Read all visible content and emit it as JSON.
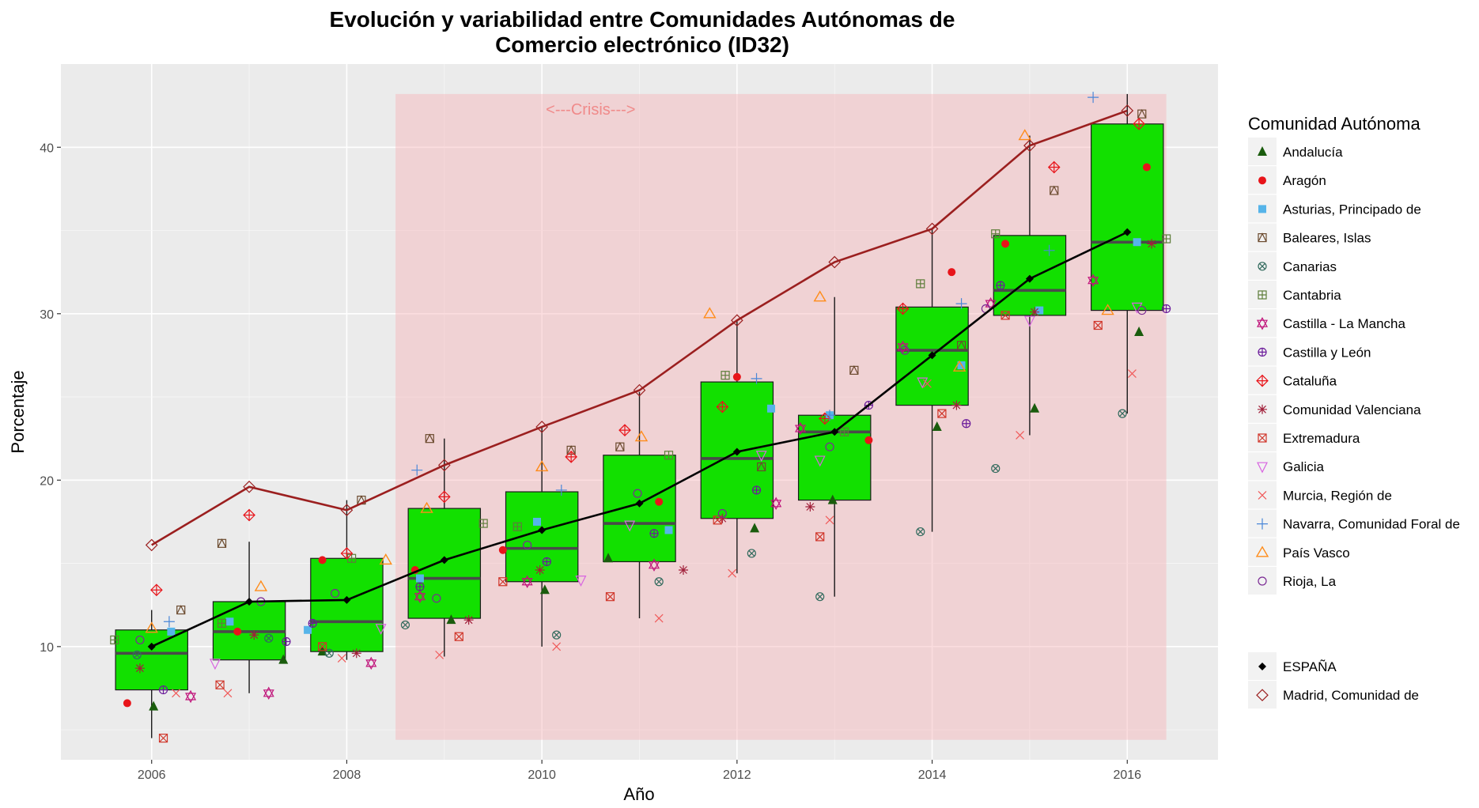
{
  "chart_data": {
    "type": "box",
    "title_line1": "Evolución y variabilidad entre Comunidades Autónomas de",
    "title_line2": "Comercio electrónico (ID32)",
    "xlabel": "Año",
    "ylabel": "Porcentaje",
    "xlim": [
      2005.07,
      2016.93
    ],
    "ylim": [
      3.2,
      45.0
    ],
    "x_ticks": [
      2006,
      2008,
      2010,
      2012,
      2014,
      2016
    ],
    "y_ticks": [
      10,
      20,
      30,
      40
    ],
    "grid": true,
    "legend_position": "right",
    "legend_title": "Comunidad Autónoma",
    "annotation": {
      "label": "<---Crisis--->",
      "x_range": [
        2008.5,
        2016.4
      ],
      "y_range": [
        4.4,
        43.2
      ],
      "label_y": 42.3,
      "color": "#f08a8a"
    },
    "boxplots": [
      {
        "year": 2006,
        "lower": 4.5,
        "q1": 7.4,
        "median": 9.6,
        "q3": 11.0,
        "upper": 12.2
      },
      {
        "year": 2007,
        "lower": 7.2,
        "q1": 9.2,
        "median": 10.9,
        "q3": 12.7,
        "upper": 16.3
      },
      {
        "year": 2008,
        "lower": 9.2,
        "q1": 9.7,
        "median": 11.5,
        "q3": 15.3,
        "upper": 18.8
      },
      {
        "year": 2009,
        "lower": 9.4,
        "q1": 11.7,
        "median": 14.1,
        "q3": 18.3,
        "upper": 22.5
      },
      {
        "year": 2010,
        "lower": 10.0,
        "q1": 13.9,
        "median": 15.9,
        "q3": 19.3,
        "upper": 23.2
      },
      {
        "year": 2011,
        "lower": 11.7,
        "q1": 15.1,
        "median": 17.4,
        "q3": 21.5,
        "upper": 25.3
      },
      {
        "year": 2012,
        "lower": 14.4,
        "q1": 17.7,
        "median": 21.3,
        "q3": 25.9,
        "upper": 29.6
      },
      {
        "year": 2013,
        "lower": 13.0,
        "q1": 18.8,
        "median": 22.9,
        "q3": 23.9,
        "upper": 31.0
      },
      {
        "year": 2014,
        "lower": 16.9,
        "q1": 24.5,
        "median": 27.8,
        "q3": 30.4,
        "upper": 35.1
      },
      {
        "year": 2015,
        "lower": 22.7,
        "q1": 29.9,
        "median": 31.4,
        "q3": 34.7,
        "upper": 40.7
      },
      {
        "year": 2016,
        "lower": 24.0,
        "q1": 30.2,
        "median": 34.3,
        "q3": 41.4,
        "upper": 43.2
      }
    ],
    "box_fill": "#12e000",
    "series": [
      {
        "name": "Andalucía",
        "shape": "triangle",
        "color": "#1a5c0d",
        "points": [
          [
            2006.02,
            6.4
          ],
          [
            2007.35,
            9.2
          ],
          [
            2007.75,
            9.7
          ],
          [
            2009.07,
            11.6
          ],
          [
            2010.03,
            13.4
          ],
          [
            2010.68,
            15.3
          ],
          [
            2012.18,
            17.1
          ],
          [
            2012.98,
            18.8
          ],
          [
            2014.05,
            23.2
          ],
          [
            2015.05,
            24.3
          ],
          [
            2016.12,
            28.9
          ]
        ]
      },
      {
        "name": "Aragón",
        "shape": "dot",
        "color": "#e8141a",
        "points": [
          [
            2005.75,
            6.6
          ],
          [
            2006.88,
            10.9
          ],
          [
            2007.75,
            15.2
          ],
          [
            2008.7,
            14.6
          ],
          [
            2009.6,
            15.8
          ],
          [
            2011.2,
            18.7
          ],
          [
            2012.0,
            26.2
          ],
          [
            2013.35,
            22.4
          ],
          [
            2014.2,
            32.5
          ],
          [
            2014.75,
            34.2
          ],
          [
            2016.2,
            38.8
          ]
        ]
      },
      {
        "name": "Asturias, Principado de",
        "shape": "square",
        "color": "#56b4e9",
        "points": [
          [
            2006.2,
            10.9
          ],
          [
            2006.8,
            11.5
          ],
          [
            2007.6,
            11.0
          ],
          [
            2008.75,
            14.1
          ],
          [
            2009.95,
            17.5
          ],
          [
            2011.3,
            17.0
          ],
          [
            2012.35,
            24.3
          ],
          [
            2012.95,
            23.9
          ],
          [
            2014.3,
            26.9
          ],
          [
            2015.1,
            30.2
          ],
          [
            2016.1,
            34.3
          ]
        ]
      },
      {
        "name": "Baleares, Islas",
        "shape": "squarex",
        "color": "#6b4a2e",
        "points": [
          [
            2006.3,
            12.2
          ],
          [
            2006.72,
            16.2
          ],
          [
            2008.15,
            18.8
          ],
          [
            2008.85,
            22.5
          ],
          [
            2010.3,
            21.8
          ],
          [
            2010.8,
            22.0
          ],
          [
            2012.25,
            20.8
          ],
          [
            2013.2,
            26.6
          ],
          [
            2014.3,
            28.1
          ],
          [
            2015.25,
            37.4
          ],
          [
            2016.15,
            42.0
          ]
        ]
      },
      {
        "name": "Canarias",
        "shape": "circlex",
        "color": "#336b5e",
        "points": [
          [
            2005.85,
            9.5
          ],
          [
            2007.2,
            10.5
          ],
          [
            2007.82,
            9.6
          ],
          [
            2008.6,
            11.3
          ],
          [
            2010.15,
            10.7
          ],
          [
            2011.2,
            13.9
          ],
          [
            2012.15,
            15.6
          ],
          [
            2012.85,
            13.0
          ],
          [
            2013.88,
            16.9
          ],
          [
            2014.65,
            20.7
          ],
          [
            2015.95,
            24.0
          ]
        ]
      },
      {
        "name": "Cantabria",
        "shape": "squareplus",
        "color": "#5e7d3a",
        "points": [
          [
            2005.62,
            10.4
          ],
          [
            2006.72,
            11.4
          ],
          [
            2008.05,
            15.3
          ],
          [
            2009.4,
            17.4
          ],
          [
            2009.75,
            17.2
          ],
          [
            2011.3,
            21.5
          ],
          [
            2011.88,
            26.3
          ],
          [
            2013.1,
            22.9
          ],
          [
            2013.88,
            31.8
          ],
          [
            2014.65,
            34.8
          ],
          [
            2016.4,
            34.5
          ]
        ]
      },
      {
        "name": "Castilla - La Mancha",
        "shape": "star6",
        "color": "#c0137a",
        "points": [
          [
            2006.4,
            7.0
          ],
          [
            2007.2,
            7.2
          ],
          [
            2008.25,
            9.0
          ],
          [
            2008.75,
            13.0
          ],
          [
            2009.85,
            13.9
          ],
          [
            2011.15,
            14.9
          ],
          [
            2012.4,
            18.6
          ],
          [
            2012.65,
            23.1
          ],
          [
            2013.7,
            28.0
          ],
          [
            2014.6,
            30.6
          ],
          [
            2015.65,
            32.0
          ]
        ]
      },
      {
        "name": "Castilla y León",
        "shape": "circleplus",
        "color": "#6a1a9a",
        "points": [
          [
            2006.12,
            7.4
          ],
          [
            2007.38,
            10.3
          ],
          [
            2007.65,
            11.4
          ],
          [
            2008.75,
            13.6
          ],
          [
            2010.05,
            15.1
          ],
          [
            2011.15,
            16.8
          ],
          [
            2012.2,
            19.4
          ],
          [
            2013.35,
            24.5
          ],
          [
            2014.35,
            23.4
          ],
          [
            2014.7,
            31.7
          ],
          [
            2016.4,
            30.3
          ]
        ]
      },
      {
        "name": "Cataluña",
        "shape": "diamondplus",
        "color": "#e8141a",
        "points": [
          [
            2006.05,
            13.4
          ],
          [
            2007.0,
            17.9
          ],
          [
            2008.0,
            15.6
          ],
          [
            2009.0,
            19.0
          ],
          [
            2010.3,
            21.4
          ],
          [
            2010.85,
            23.0
          ],
          [
            2011.85,
            24.4
          ],
          [
            2012.9,
            23.7
          ],
          [
            2013.7,
            30.3
          ],
          [
            2015.25,
            38.8
          ],
          [
            2016.12,
            41.4
          ]
        ]
      },
      {
        "name": "Comunidad Valenciana",
        "shape": "asterisk",
        "color": "#a1203a",
        "points": [
          [
            2005.88,
            8.7
          ],
          [
            2007.05,
            10.7
          ],
          [
            2008.1,
            9.6
          ],
          [
            2009.25,
            11.6
          ],
          [
            2009.98,
            14.6
          ],
          [
            2011.45,
            14.6
          ],
          [
            2011.85,
            17.7
          ],
          [
            2012.75,
            18.4
          ],
          [
            2014.25,
            24.5
          ],
          [
            2015.05,
            30.1
          ],
          [
            2016.25,
            34.2
          ]
        ]
      },
      {
        "name": "Extremadura",
        "shape": "squarex2",
        "color": "#d0362a",
        "points": [
          [
            2006.12,
            4.5
          ],
          [
            2006.7,
            7.7
          ],
          [
            2007.75,
            10.0
          ],
          [
            2009.15,
            10.6
          ],
          [
            2009.6,
            13.9
          ],
          [
            2010.7,
            13.0
          ],
          [
            2011.8,
            17.6
          ],
          [
            2012.85,
            16.6
          ],
          [
            2014.1,
            24.0
          ],
          [
            2014.75,
            29.9
          ],
          [
            2015.7,
            29.3
          ]
        ]
      },
      {
        "name": "Galicia",
        "shape": "triangledown",
        "color": "#d865e0",
        "points": [
          [
            2006.65,
            9.0
          ],
          [
            2008.35,
            11.1
          ],
          [
            2010.4,
            14.0
          ],
          [
            2010.9,
            17.3
          ],
          [
            2012.25,
            21.5
          ],
          [
            2012.85,
            21.2
          ],
          [
            2013.9,
            25.9
          ],
          [
            2015.0,
            29.6
          ],
          [
            2016.1,
            30.4
          ]
        ]
      },
      {
        "name": "Murcia, Región de",
        "shape": "cross",
        "color": "#f05a5a",
        "points": [
          [
            2006.25,
            7.2
          ],
          [
            2006.78,
            7.2
          ],
          [
            2007.95,
            9.3
          ],
          [
            2008.95,
            9.5
          ],
          [
            2010.15,
            10.0
          ],
          [
            2011.2,
            11.7
          ],
          [
            2011.95,
            14.4
          ],
          [
            2012.95,
            17.6
          ],
          [
            2013.95,
            25.8
          ],
          [
            2014.9,
            22.7
          ],
          [
            2016.05,
            26.4
          ]
        ]
      },
      {
        "name": "Navarra, Comunidad Foral de",
        "shape": "plus",
        "color": "#4a87d8",
        "points": [
          [
            2006.18,
            11.5
          ],
          [
            2008.72,
            20.6
          ],
          [
            2010.2,
            19.4
          ],
          [
            2012.2,
            26.1
          ],
          [
            2012.95,
            23.9
          ],
          [
            2014.3,
            30.6
          ],
          [
            2015.2,
            33.8
          ],
          [
            2015.65,
            43.0
          ]
        ]
      },
      {
        "name": "País Vasco",
        "shape": "triangleopen",
        "color": "#ff8c1a",
        "points": [
          [
            2006.0,
            11.1
          ],
          [
            2007.12,
            13.6
          ],
          [
            2008.4,
            15.2
          ],
          [
            2008.82,
            18.3
          ],
          [
            2010.0,
            20.8
          ],
          [
            2011.02,
            22.6
          ],
          [
            2011.72,
            30.0
          ],
          [
            2012.85,
            31.0
          ],
          [
            2014.28,
            26.8
          ],
          [
            2014.95,
            40.7
          ],
          [
            2015.8,
            30.2
          ]
        ]
      },
      {
        "name": "Rioja, La",
        "shape": "circle",
        "color": "#7b2a94",
        "points": [
          [
            2005.88,
            10.4
          ],
          [
            2007.12,
            12.7
          ],
          [
            2007.88,
            13.2
          ],
          [
            2008.92,
            12.9
          ],
          [
            2009.85,
            16.1
          ],
          [
            2010.98,
            19.2
          ],
          [
            2011.85,
            18.0
          ],
          [
            2012.95,
            22.0
          ],
          [
            2013.72,
            27.8
          ],
          [
            2014.55,
            30.3
          ],
          [
            2016.15,
            30.2
          ]
        ]
      }
    ],
    "line_series": [
      {
        "name": "ESPAÑA",
        "shape": "diamondfill",
        "color": "#000000",
        "x": [
          2006,
          2007,
          2008,
          2009,
          2010,
          2011,
          2012,
          2013,
          2014,
          2015,
          2016
        ],
        "y": [
          10.0,
          12.7,
          12.8,
          15.2,
          17.0,
          18.6,
          21.7,
          22.9,
          27.5,
          32.1,
          34.9
        ]
      },
      {
        "name": "Madrid, Comunidad de",
        "shape": "diamondopen",
        "color": "#9b1f1f",
        "x": [
          2006,
          2007,
          2008,
          2009,
          2010,
          2011,
          2012,
          2013,
          2014,
          2015,
          2016
        ],
        "y": [
          16.1,
          19.6,
          18.2,
          20.9,
          23.2,
          25.4,
          29.6,
          33.1,
          35.1,
          40.1,
          42.2
        ]
      }
    ]
  }
}
